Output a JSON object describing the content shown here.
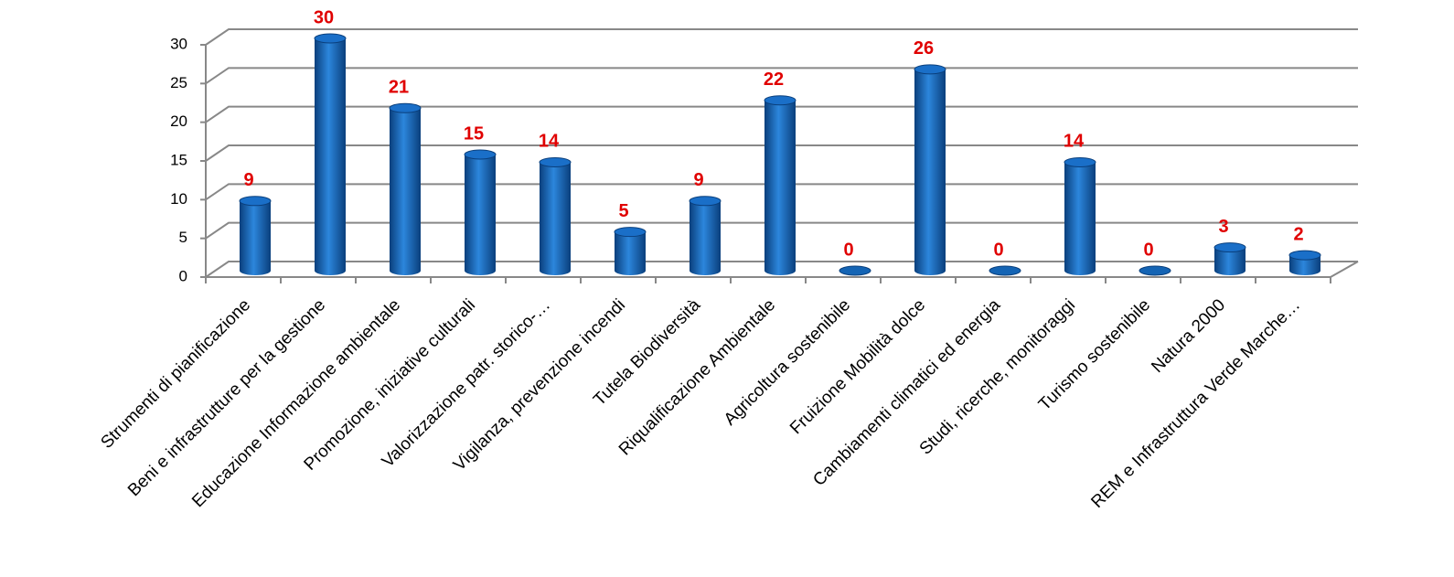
{
  "chart_data": {
    "type": "bar",
    "categories": [
      "Strumenti di pianificazione",
      "Beni e infrastrutture per la gestione",
      "Educazione Informazione ambientale",
      "Promozione, iniziative culturali",
      "Valorizzazione patr. storico-…",
      "Vigilanza, prevenzione incendi",
      "Tutela Biodiversità",
      "Riqualificazione Ambientale",
      "Agricoltura sostenibile",
      "Fruizione Mobilità dolce",
      "Cambiamenti climatici ed energia",
      "Studi, ricerche, monitoraggi",
      "Turismo sostenibile",
      "Natura 2000",
      "REM e Infrastruttura Verde Marche…"
    ],
    "values": [
      9,
      30,
      21,
      15,
      14,
      5,
      9,
      22,
      0,
      26,
      0,
      14,
      0,
      3,
      2
    ],
    "color": "#1464b4",
    "label_color": "#e00000",
    "ylim": [
      0,
      30
    ],
    "yticks": [
      0,
      5,
      10,
      15,
      20,
      25,
      30
    ],
    "grid": true
  }
}
